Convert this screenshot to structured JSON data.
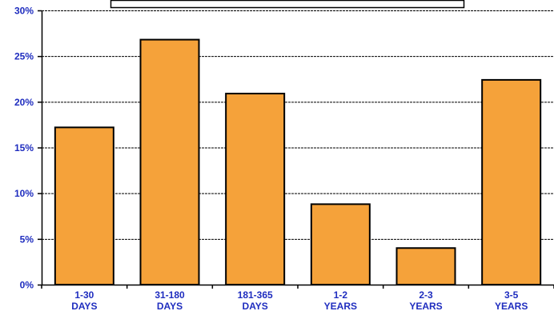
{
  "colors": {
    "bar_fill": "#F5A23A",
    "bar_stroke": "#000000",
    "tick_label": "#1F2DBF",
    "grid": "#000000"
  },
  "chart_data": {
    "type": "bar",
    "categories": [
      [
        "1-30",
        "DAYS"
      ],
      [
        "31-180",
        "DAYS"
      ],
      [
        "181-365",
        "DAYS"
      ],
      [
        "1-2",
        "YEARS"
      ],
      [
        "2-3",
        "YEARS"
      ],
      [
        "3-5",
        "YEARS"
      ]
    ],
    "values": [
      17.2,
      26.8,
      20.9,
      8.8,
      4.0,
      22.4
    ],
    "ylim": [
      0,
      30
    ],
    "yticks": [
      "0%",
      "5%",
      "10%",
      "15%",
      "20%",
      "25%",
      "30%"
    ],
    "ytick_values": [
      0,
      5,
      10,
      15,
      20,
      25,
      30
    ],
    "grid": true,
    "legend": "top-center, box with no visible text",
    "title": "",
    "xlabel": "",
    "ylabel": ""
  }
}
